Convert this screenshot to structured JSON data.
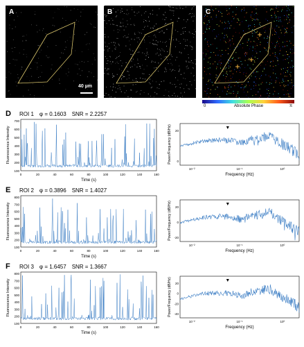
{
  "panels": {
    "a": {
      "letter": "A",
      "scalebar": "40 µm"
    },
    "b": {
      "letter": "B"
    },
    "c": {
      "letter": "C",
      "colorbar_min": "0",
      "colorbar_label": "Absolute Phase",
      "colorbar_max": "π",
      "colorbar_stops": [
        "#1a0a8a",
        "#2f6bff",
        "#3fe0e0",
        "#a8ff50",
        "#ffd23a",
        "#ff5a1a",
        "#8a0a0a"
      ]
    }
  },
  "colors": {
    "trace": "#3b7dc4",
    "outline": "#d8c36a",
    "marker": "#f0b040"
  },
  "time_axis": {
    "label": "Time (s)",
    "ticks": [
      "0",
      "20",
      "40",
      "60",
      "80",
      "100",
      "120",
      "140",
      "160"
    ]
  },
  "freq_axis": {
    "label": "Frequency (Hz)",
    "ticks": [
      "10⁻²",
      "10⁻¹",
      "10⁰"
    ]
  },
  "rows": [
    {
      "letter": "D",
      "roi": "ROI 1",
      "phi": "φ = 0.1603",
      "snr": "SNR = 2.2257",
      "ylabel": "Fluorescence Intensity",
      "yticks": [
        "100",
        "200",
        "300",
        "400",
        "500",
        "600",
        "700"
      ],
      "psd_ylabel": "Power/Frequency (dB/Hz)",
      "psd_yticks": [
        "20",
        "0"
      ]
    },
    {
      "letter": "E",
      "roi": "ROI 2",
      "phi": "φ = 0.3896",
      "snr": "SNR = 1.4027",
      "ylabel": "Fluorescence Intensity",
      "yticks": [
        "100",
        "200",
        "300",
        "400",
        "500",
        "600",
        "700",
        "800"
      ],
      "psd_ylabel": "Power/Frequency (dB/Hz)",
      "psd_yticks": [
        "20",
        "0",
        "-20"
      ]
    },
    {
      "letter": "F",
      "roi": "ROI 3",
      "phi": "φ = 1.6457",
      "snr": "SNR = 1.3667",
      "ylabel": "Fluorescence Intensity",
      "yticks": [
        "100",
        "200",
        "300",
        "400",
        "500",
        "600",
        "700",
        "800"
      ],
      "psd_ylabel": "Power/Frequency (dB/Hz)",
      "psd_yticks": [
        "20",
        "0",
        "-20",
        "-40"
      ]
    }
  ]
}
